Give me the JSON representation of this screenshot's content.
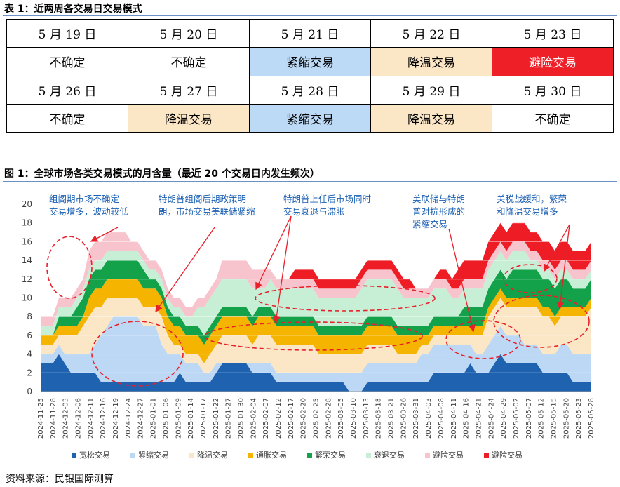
{
  "table_caption": "表 1：近两周各交易日交易模式",
  "table_rows": [
    {
      "cells": [
        {
          "text": "5 月 19 日",
          "cls": ""
        },
        {
          "text": "5 月 20 日",
          "cls": ""
        },
        {
          "text": "5 月 21 日",
          "cls": ""
        },
        {
          "text": "5 月 22 日",
          "cls": ""
        },
        {
          "text": "5 月 23 日",
          "cls": ""
        }
      ]
    },
    {
      "cells": [
        {
          "text": "不确定",
          "cls": ""
        },
        {
          "text": "不确定",
          "cls": ""
        },
        {
          "text": "紧缩交易",
          "cls": "c-sx"
        },
        {
          "text": "降温交易",
          "cls": "c-jw"
        },
        {
          "text": "避险交易",
          "cls": "c-bx"
        }
      ]
    },
    {
      "cells": [
        {
          "text": "5 月 26 日",
          "cls": ""
        },
        {
          "text": "5 月 27 日",
          "cls": ""
        },
        {
          "text": "5 月 28 日",
          "cls": ""
        },
        {
          "text": "5 月 29 日",
          "cls": ""
        },
        {
          "text": "5 月 30 日",
          "cls": ""
        }
      ]
    },
    {
      "cells": [
        {
          "text": "不确定",
          "cls": ""
        },
        {
          "text": "降温交易",
          "cls": "c-jw"
        },
        {
          "text": "紧缩交易",
          "cls": "c-sx"
        },
        {
          "text": "降温交易",
          "cls": "c-jw"
        },
        {
          "text": "不确定",
          "cls": ""
        }
      ]
    }
  ],
  "figure_caption": "图 1：全球市场各类交易模式的月含量（最近 20 个交易日内发生频次）",
  "annotations": [
    {
      "id": "ann-1",
      "lines": [
        "组阁期市场不确定",
        "交易增多，波动较低"
      ]
    },
    {
      "id": "ann-2",
      "lines": [
        "特朗普组阁后期政策明",
        "朗，市场交易美联储紧缩"
      ]
    },
    {
      "id": "ann-3",
      "lines": [
        "特朗普上任后市场同时",
        "交易衰退与滞胀"
      ]
    },
    {
      "id": "ann-4",
      "lines": [
        "美联储与特朗",
        "普对抗形成的",
        "紧缩交易"
      ]
    },
    {
      "id": "ann-5",
      "lines": [
        "关税战缓和，繁荣",
        "和降温交易增多"
      ]
    }
  ],
  "source": "资料来源：民银国际测算",
  "chart_data": {
    "type": "area",
    "stacked": true,
    "ylim": [
      0,
      20
    ],
    "yticks": [
      0,
      2,
      4,
      6,
      8,
      10,
      12,
      14,
      16,
      18,
      20
    ],
    "grid": true,
    "legend_position": "bottom",
    "xticks": [
      "2024-11-25",
      "2024-11-28",
      "2024-12-03",
      "2024-12-06",
      "2024-12-11",
      "2024-12-16",
      "2024-12-19",
      "2024-12-24",
      "2024-12-27",
      "2025-01-01",
      "2025-01-06",
      "2025-01-09",
      "2025-01-14",
      "2025-01-17",
      "2025-01-22",
      "2025-01-27",
      "2025-01-30",
      "2025-02-04",
      "2025-02-07",
      "2025-02-12",
      "2025-02-17",
      "2025-02-20",
      "2025-02-25",
      "2025-02-28",
      "2025-03-05",
      "2025-03-10",
      "2025-03-13",
      "2025-03-18",
      "2025-03-21",
      "2025-03-26",
      "2025-03-31",
      "2025-04-03",
      "2025-04-08",
      "2025-04-11",
      "2025-04-16",
      "2025-04-21",
      "2025-04-24",
      "2025-04-29",
      "2025-05-02",
      "2025-05-07",
      "2025-05-12",
      "2025-05-15",
      "2025-05-20",
      "2025-05-23",
      "2025-05-28"
    ],
    "series": [
      {
        "name": "宽松交易",
        "color": "#1f63b0",
        "values": [
          3,
          3,
          3,
          4,
          3,
          2,
          2,
          2,
          2,
          2,
          1,
          1,
          1,
          1,
          1,
          1,
          1,
          1,
          1,
          1,
          1,
          1,
          1,
          2,
          1,
          1,
          1,
          1,
          1,
          2,
          3,
          3,
          3,
          3,
          3,
          2,
          2,
          2,
          2,
          1,
          1,
          1,
          1,
          1,
          1,
          1,
          1,
          1,
          1,
          1,
          1,
          0,
          0,
          0,
          1,
          1,
          1,
          1,
          1,
          1,
          1,
          1,
          1,
          1,
          1,
          2,
          2,
          2,
          2,
          2,
          2,
          3,
          2,
          2,
          2,
          3,
          4,
          3,
          3,
          3,
          3,
          3,
          3,
          2,
          2,
          2,
          2,
          2,
          1,
          1,
          1,
          1
        ]
      },
      {
        "name": "紧缩交易",
        "color": "#bcd8f4",
        "values": [
          1,
          1,
          1,
          1,
          1,
          2,
          2,
          2,
          2,
          3,
          5,
          6,
          7,
          7,
          7,
          7,
          7,
          6,
          6,
          6,
          4,
          3,
          3,
          2,
          2,
          2,
          2,
          1,
          1,
          1,
          0,
          0,
          0,
          0,
          0,
          1,
          1,
          1,
          1,
          1,
          1,
          1,
          1,
          1,
          1,
          1,
          1,
          1,
          1,
          1,
          1,
          2,
          2,
          2,
          2,
          2,
          2,
          2,
          2,
          2,
          2,
          2,
          2,
          3,
          3,
          3,
          3,
          3,
          3,
          3,
          3,
          2,
          2,
          2,
          3,
          3,
          3,
          3,
          3,
          3,
          2,
          2,
          2,
          2,
          2,
          2,
          3,
          3,
          3,
          3,
          3,
          3
        ]
      },
      {
        "name": "降温交易",
        "color": "#fbe6c6",
        "values": [
          1,
          1,
          1,
          1,
          2,
          2,
          2,
          3,
          4,
          4,
          3,
          3,
          2,
          2,
          2,
          2,
          2,
          2,
          2,
          2,
          3,
          2,
          1,
          1,
          1,
          1,
          1,
          1,
          2,
          2,
          3,
          3,
          3,
          3,
          3,
          2,
          3,
          3,
          3,
          3,
          3,
          3,
          3,
          3,
          3,
          3,
          2,
          2,
          2,
          2,
          2,
          2,
          2,
          2,
          2,
          2,
          2,
          2,
          2,
          1,
          1,
          1,
          1,
          1,
          1,
          1,
          1,
          1,
          1,
          1,
          1,
          1,
          2,
          2,
          3,
          3,
          3,
          3,
          3,
          3,
          4,
          4,
          4,
          4,
          4,
          3,
          3,
          3,
          4,
          4,
          4,
          5
        ]
      },
      {
        "name": "通胀交易",
        "color": "#f4b400",
        "values": [
          1,
          1,
          1,
          1,
          1,
          1,
          1,
          1,
          2,
          2,
          2,
          2,
          2,
          2,
          2,
          2,
          2,
          2,
          2,
          2,
          2,
          2,
          2,
          2,
          2,
          2,
          2,
          2,
          2,
          2,
          2,
          2,
          2,
          2,
          2,
          2,
          2,
          2,
          2,
          2,
          2,
          2,
          2,
          2,
          2,
          2,
          2,
          2,
          2,
          2,
          2,
          2,
          2,
          2,
          2,
          2,
          2,
          2,
          2,
          2,
          2,
          2,
          2,
          1,
          1,
          1,
          1,
          1,
          1,
          1,
          1,
          1,
          1,
          1,
          1,
          1,
          1,
          1,
          1,
          1,
          1,
          1,
          1,
          1,
          1,
          1,
          1,
          1,
          1,
          1,
          1,
          1
        ]
      },
      {
        "name": "繁荣交易",
        "color": "#13a14a",
        "values": [
          0,
          0,
          0,
          1,
          1,
          1,
          2,
          2,
          2,
          2,
          2,
          2,
          2,
          2,
          2,
          2,
          2,
          2,
          1,
          1,
          1,
          1,
          1,
          1,
          1,
          1,
          1,
          1,
          1,
          1,
          1,
          1,
          1,
          1,
          1,
          1,
          1,
          1,
          1,
          1,
          1,
          1,
          1,
          1,
          1,
          1,
          1,
          1,
          1,
          1,
          1,
          1,
          1,
          1,
          1,
          1,
          1,
          1,
          1,
          1,
          1,
          1,
          1,
          1,
          1,
          1,
          1,
          1,
          1,
          1,
          2,
          2,
          2,
          2,
          2,
          2,
          2,
          2,
          3,
          3,
          3,
          3,
          3,
          3,
          3,
          3,
          3,
          3,
          2,
          2,
          2,
          2
        ]
      },
      {
        "name": "衰退交易",
        "color": "#c6efd6",
        "values": [
          1,
          1,
          1,
          1,
          1,
          1,
          1,
          1,
          1,
          1,
          1,
          1,
          1,
          1,
          1,
          1,
          1,
          1,
          1,
          1,
          1,
          1,
          1,
          1,
          1,
          1,
          2,
          3,
          3,
          3,
          3,
          3,
          3,
          3,
          3,
          3,
          2,
          2,
          3,
          3,
          3,
          3,
          3,
          3,
          3,
          3,
          3,
          3,
          3,
          3,
          3,
          3,
          3,
          4,
          4,
          4,
          4,
          4,
          4,
          4,
          3,
          3,
          3,
          3,
          3,
          3,
          3,
          3,
          2,
          2,
          2,
          2,
          2,
          2,
          2,
          2,
          2,
          2,
          2,
          2,
          2,
          1,
          1,
          1,
          1,
          1,
          1,
          1,
          1,
          1,
          1,
          1
        ]
      },
      {
        "name": "避险交易",
        "color": "#f7c4cd",
        "values": [
          1,
          1,
          1,
          1,
          1,
          1,
          1,
          1,
          2,
          2,
          2,
          2,
          2,
          2,
          2,
          1,
          1,
          1,
          1,
          1,
          1,
          1,
          1,
          1,
          1,
          1,
          1,
          1,
          1,
          1,
          2,
          2,
          2,
          2,
          2,
          2,
          2,
          2,
          1,
          1,
          1,
          1,
          1,
          1,
          1,
          1,
          1,
          1,
          1,
          1,
          1,
          1,
          1,
          1,
          1,
          1,
          1,
          1,
          1,
          1,
          1,
          1,
          1,
          1,
          1,
          1,
          1,
          1,
          1,
          1,
          1,
          1,
          1,
          1,
          1,
          1,
          1,
          1,
          1,
          1,
          1,
          1,
          1,
          1,
          1,
          1,
          1,
          1,
          1,
          1,
          1,
          1
        ]
      },
      {
        "name": "避险交易",
        "color": "#ee1c25",
        "values": [
          0,
          0,
          0,
          0,
          0,
          0,
          0,
          0,
          0,
          0,
          0,
          0,
          0,
          0,
          0,
          0,
          0,
          0,
          0,
          0,
          0,
          0,
          0,
          0,
          0,
          0,
          0,
          0,
          0,
          0,
          0,
          0,
          0,
          0,
          0,
          0,
          0,
          0,
          0,
          0,
          0,
          0,
          1,
          1,
          1,
          1,
          1,
          1,
          1,
          1,
          1,
          1,
          1,
          1,
          1,
          1,
          1,
          1,
          1,
          1,
          1,
          1,
          0,
          0,
          0,
          0,
          1,
          1,
          1,
          2,
          2,
          2,
          2,
          2,
          2,
          2,
          2,
          2,
          2,
          2,
          2,
          2,
          2,
          2,
          2,
          2,
          2,
          2,
          2,
          2,
          2,
          2
        ]
      }
    ]
  }
}
